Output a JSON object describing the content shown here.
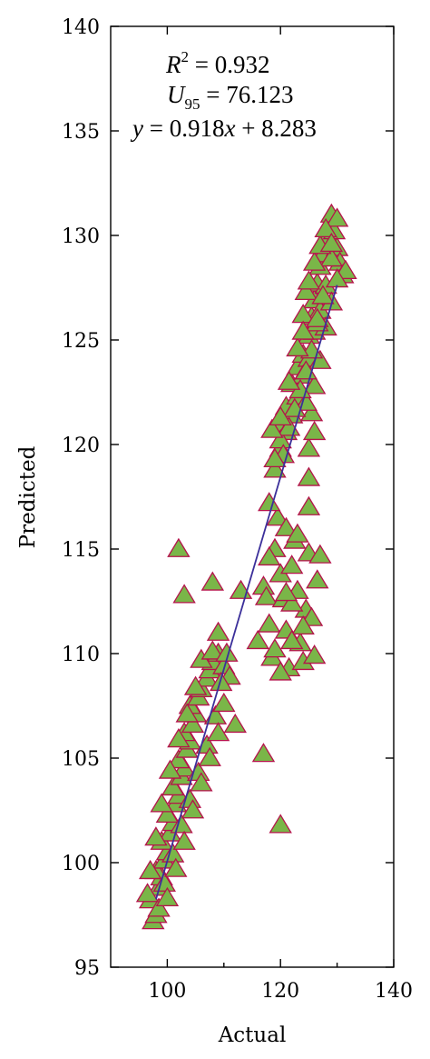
{
  "chart_data": {
    "type": "scatter",
    "xlabel": "Actual",
    "ylabel": "Predicted",
    "xlim": [
      90,
      140
    ],
    "ylim": [
      95,
      140
    ],
    "xticks": [
      100,
      120,
      140
    ],
    "yticks": [
      95,
      100,
      105,
      110,
      115,
      120,
      125,
      130,
      135,
      140
    ],
    "grid": false,
    "legend": "none",
    "marker": "triangle",
    "marker_fill": "#7ab648",
    "marker_edge": "#b5124b",
    "line_color": "#3b2f9a",
    "annotations": {
      "r2_label": "R",
      "r2_sup": "2",
      "r2_value": " = 0.932",
      "u95_label": "U",
      "u95_sub": "95",
      "u95_value": " = 76.123",
      "eq_y": "y",
      "eq_mid": " = 0.918",
      "eq_x": "x",
      "eq_tail": " + 8.283"
    },
    "fit": {
      "slope": 0.918,
      "intercept": 8.283,
      "x_range": [
        98,
        130
      ]
    },
    "series": [
      {
        "points": [
          [
            97.5,
            97.2
          ],
          [
            98,
            97.5
          ],
          [
            97,
            98.2
          ],
          [
            98.5,
            98.8
          ],
          [
            99,
            99.3
          ],
          [
            98,
            99.6
          ],
          [
            99.5,
            100.1
          ],
          [
            100,
            100.5
          ],
          [
            99,
            101
          ],
          [
            100.5,
            101.4
          ],
          [
            101,
            101.9
          ],
          [
            100,
            102.3
          ],
          [
            101.5,
            102.8
          ],
          [
            102,
            103.2
          ],
          [
            101,
            103.6
          ],
          [
            102.5,
            104.1
          ],
          [
            103,
            104.5
          ],
          [
            102,
            104.9
          ],
          [
            103.5,
            105.4
          ],
          [
            104,
            105.8
          ],
          [
            103,
            106.2
          ],
          [
            104.5,
            106.6
          ],
          [
            105,
            107.1
          ],
          [
            104,
            107.5
          ],
          [
            105.5,
            107.9
          ],
          [
            106,
            108.3
          ],
          [
            107,
            108.8
          ],
          [
            107.5,
            109.2
          ],
          [
            108,
            109.6
          ],
          [
            109,
            110
          ],
          [
            110,
            109.4
          ],
          [
            108.5,
            107
          ],
          [
            107,
            105.6
          ],
          [
            105.5,
            104.3
          ],
          [
            104,
            103
          ],
          [
            102.5,
            101.8
          ],
          [
            101,
            100.4
          ],
          [
            99.5,
            99
          ],
          [
            98.5,
            97.8
          ],
          [
            100,
            98.3
          ],
          [
            101.5,
            99.7
          ],
          [
            103,
            101
          ],
          [
            104.5,
            102.5
          ],
          [
            106,
            103.8
          ],
          [
            107.5,
            105
          ],
          [
            109,
            106.2
          ],
          [
            110,
            107.6
          ],
          [
            111,
            108.9
          ],
          [
            106,
            109.7
          ],
          [
            105,
            108.4
          ],
          [
            103.5,
            107.1
          ],
          [
            102,
            105.9
          ],
          [
            100.5,
            104.4
          ],
          [
            99,
            102.8
          ],
          [
            98,
            101.2
          ],
          [
            97,
            99.6
          ],
          [
            96.5,
            98.5
          ],
          [
            108,
            110.1
          ],
          [
            109.5,
            108.6
          ],
          [
            110.5,
            110
          ],
          [
            102,
            115
          ],
          [
            103,
            112.8
          ],
          [
            108,
            113.4
          ],
          [
            109,
            111
          ],
          [
            112,
            106.6
          ],
          [
            113,
            113
          ],
          [
            117,
            105.2
          ],
          [
            120,
            101.8
          ],
          [
            116,
            110.6
          ],
          [
            117,
            113.2
          ],
          [
            117.5,
            112.7
          ],
          [
            118,
            111.4
          ],
          [
            118.5,
            109.8
          ],
          [
            119,
            115
          ],
          [
            119.5,
            116.5
          ],
          [
            120,
            113.8
          ],
          [
            120.5,
            112.6
          ],
          [
            121,
            111.1
          ],
          [
            121.5,
            109.3
          ],
          [
            122,
            114.2
          ],
          [
            122.5,
            115.4
          ],
          [
            123,
            113
          ],
          [
            123.5,
            110.5
          ],
          [
            124,
            109.6
          ],
          [
            124.5,
            112.1
          ],
          [
            125,
            114.8
          ],
          [
            125.5,
            111.7
          ],
          [
            126,
            109.9
          ],
          [
            126.5,
            113.5
          ],
          [
            127,
            114.7
          ],
          [
            121,
            116
          ],
          [
            123,
            115.7
          ],
          [
            125,
            117
          ],
          [
            118,
            117.2
          ],
          [
            119,
            118.8
          ],
          [
            120,
            119.8
          ],
          [
            119.5,
            120.9
          ],
          [
            121,
            121.8
          ],
          [
            122,
            122.9
          ],
          [
            123,
            123.7
          ],
          [
            124,
            124.3
          ],
          [
            125,
            125.2
          ],
          [
            125.5,
            126.1
          ],
          [
            126,
            126.9
          ],
          [
            126.5,
            127.7
          ],
          [
            127,
            128.5
          ],
          [
            127.5,
            129.1
          ],
          [
            128,
            129.8
          ],
          [
            128.5,
            130.4
          ],
          [
            129,
            131
          ],
          [
            129.5,
            130.2
          ],
          [
            130,
            129.4
          ],
          [
            130.5,
            128.7
          ],
          [
            131,
            128.1
          ],
          [
            131.5,
            128.3
          ],
          [
            130,
            130.8
          ],
          [
            129,
            128.9
          ],
          [
            128,
            127.6
          ],
          [
            127,
            126.4
          ],
          [
            126,
            125.4
          ],
          [
            125,
            124.1
          ],
          [
            124,
            123.3
          ],
          [
            123,
            122.3
          ],
          [
            122,
            121.4
          ],
          [
            121,
            120.6
          ],
          [
            120,
            120.2
          ],
          [
            125,
            119.8
          ],
          [
            126,
            120.6
          ],
          [
            125.5,
            121.5
          ],
          [
            124.5,
            122
          ],
          [
            125,
            118.4
          ],
          [
            126,
            122.8
          ],
          [
            127,
            124
          ],
          [
            128,
            125.6
          ],
          [
            129,
            126.8
          ],
          [
            130,
            127.9
          ],
          [
            124,
            126.2
          ],
          [
            124.5,
            127.3
          ],
          [
            125,
            127.8
          ],
          [
            126,
            128.7
          ],
          [
            127,
            129.5
          ],
          [
            128,
            130.3
          ],
          [
            129,
            129.6
          ],
          [
            127.5,
            127.1
          ],
          [
            126.5,
            125.8
          ],
          [
            125.5,
            124.5
          ],
          [
            124.5,
            123.5
          ],
          [
            123.5,
            122.6
          ],
          [
            122.5,
            121.7
          ],
          [
            121.5,
            120.8
          ],
          [
            120.5,
            119.5
          ],
          [
            119,
            119.3
          ],
          [
            118.5,
            120.7
          ],
          [
            120,
            121.3
          ],
          [
            121.5,
            123
          ],
          [
            123,
            124.6
          ],
          [
            124,
            125.4
          ],
          [
            126.5,
            126
          ],
          [
            122,
            112.4
          ],
          [
            124,
            111.3
          ],
          [
            121,
            112.9
          ],
          [
            119,
            110.2
          ],
          [
            118,
            114.6
          ],
          [
            122,
            110.6
          ],
          [
            120,
            109.1
          ]
        ]
      }
    ]
  }
}
